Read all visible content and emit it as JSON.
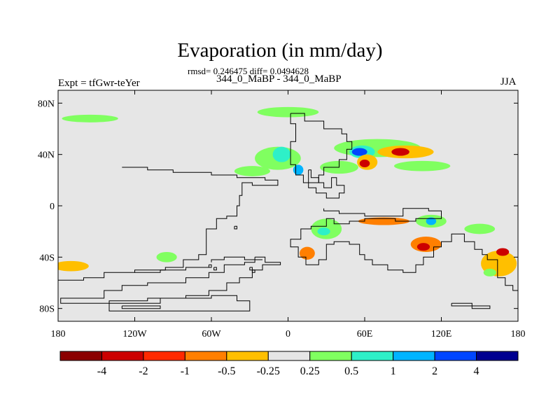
{
  "chart_data": {
    "type": "heatmap",
    "title": "Evaporation (in mm/day)",
    "stats": "rmsd= 0.246475 diff= 0.0494628",
    "experiment": "Expt = tfGwr-teYer",
    "case": "344_0_MaBP - 344_0_MaBP",
    "season": "JJA",
    "units": "mm/day",
    "x_range": [
      -180,
      180
    ],
    "y_range": [
      -90,
      90
    ],
    "x_ticks": [
      {
        "value": -180,
        "label": "180"
      },
      {
        "value": -120,
        "label": "120W"
      },
      {
        "value": -60,
        "label": "60W"
      },
      {
        "value": 0,
        "label": "0"
      },
      {
        "value": 60,
        "label": "60E"
      },
      {
        "value": 120,
        "label": "120E"
      },
      {
        "value": 180,
        "label": "180"
      }
    ],
    "y_ticks": [
      {
        "value": 80,
        "label": "80N"
      },
      {
        "value": 40,
        "label": "40N"
      },
      {
        "value": 0,
        "label": "0"
      },
      {
        "value": -40,
        "label": "40S"
      },
      {
        "value": -80,
        "label": "80S"
      }
    ],
    "colorbar": {
      "boundaries": [
        "-4",
        "-2",
        "-1",
        "-0.5",
        "-0.25",
        "0.25",
        "0.5",
        "1",
        "2",
        "4"
      ],
      "colors": [
        "#8b0000",
        "#cc0000",
        "#ff2a00",
        "#ff7f00",
        "#ffbf00",
        "#e6e6e6",
        "#80ff60",
        "#2ef0c8",
        "#00b4ff",
        "#0046ff",
        "#000090"
      ]
    },
    "anomaly_regions": [
      {
        "lon": -155,
        "lat": 68,
        "rx": 22,
        "ry": 3,
        "level": 6
      },
      {
        "lon": 0,
        "lat": 73,
        "rx": 24,
        "ry": 4,
        "level": 6
      },
      {
        "lon": -8,
        "lat": 37,
        "rx": 18,
        "ry": 9,
        "level": 6
      },
      {
        "lon": -5,
        "lat": 40,
        "rx": 7,
        "ry": 6,
        "level": 7
      },
      {
        "lon": 8,
        "lat": 28,
        "rx": 4,
        "ry": 4,
        "level": 8
      },
      {
        "lon": 70,
        "lat": 45,
        "rx": 34,
        "ry": 7,
        "level": 6
      },
      {
        "lon": 58,
        "lat": 42,
        "rx": 10,
        "ry": 5,
        "level": 7
      },
      {
        "lon": 56,
        "lat": 42,
        "rx": 6,
        "ry": 3,
        "level": 9
      },
      {
        "lon": 62,
        "lat": 34,
        "rx": 8,
        "ry": 6,
        "level": 4
      },
      {
        "lon": 60,
        "lat": 33,
        "rx": 4,
        "ry": 3,
        "level": 1
      },
      {
        "lon": 92,
        "lat": 42,
        "rx": 22,
        "ry": 5,
        "level": 4
      },
      {
        "lon": 88,
        "lat": 42,
        "rx": 7,
        "ry": 3,
        "level": 1
      },
      {
        "lon": 105,
        "lat": 31,
        "rx": 22,
        "ry": 4,
        "level": 6
      },
      {
        "lon": 40,
        "lat": 30,
        "rx": 15,
        "ry": 5,
        "level": 6
      },
      {
        "lon": -28,
        "lat": 27,
        "rx": 14,
        "ry": 4,
        "level": 6
      },
      {
        "lon": 30,
        "lat": -18,
        "rx": 12,
        "ry": 8,
        "level": 6
      },
      {
        "lon": 28,
        "lat": -20,
        "rx": 5,
        "ry": 3,
        "level": 7
      },
      {
        "lon": 75,
        "lat": -12,
        "rx": 20,
        "ry": 3,
        "level": 3
      },
      {
        "lon": 112,
        "lat": -12,
        "rx": 12,
        "ry": 5,
        "level": 6
      },
      {
        "lon": 112,
        "lat": -12,
        "rx": 4,
        "ry": 3,
        "level": 8
      },
      {
        "lon": 108,
        "lat": -30,
        "rx": 12,
        "ry": 6,
        "level": 3
      },
      {
        "lon": 106,
        "lat": -32,
        "rx": 5,
        "ry": 3,
        "level": 1
      },
      {
        "lon": 15,
        "lat": -37,
        "rx": 6,
        "ry": 5,
        "level": 3
      },
      {
        "lon": 165,
        "lat": -45,
        "rx": 14,
        "ry": 10,
        "level": 4
      },
      {
        "lon": 168,
        "lat": -36,
        "rx": 5,
        "ry": 3,
        "level": 1
      },
      {
        "lon": 158,
        "lat": -52,
        "rx": 5,
        "ry": 3,
        "level": 6
      },
      {
        "lon": -170,
        "lat": -47,
        "rx": 14,
        "ry": 4,
        "level": 4
      },
      {
        "lon": -95,
        "lat": -40,
        "rx": 8,
        "ry": 4,
        "level": 6
      },
      {
        "lon": 150,
        "lat": -18,
        "rx": 12,
        "ry": 4,
        "level": 6
      }
    ],
    "land_outlines": [
      [
        [
          2,
          72
        ],
        [
          13,
          72
        ],
        [
          13,
          66
        ],
        [
          28,
          66
        ],
        [
          28,
          60
        ],
        [
          42,
          60
        ],
        [
          42,
          56
        ],
        [
          46,
          56
        ],
        [
          46,
          50
        ],
        [
          50,
          50
        ],
        [
          50,
          44
        ],
        [
          46,
          44
        ],
        [
          46,
          36
        ],
        [
          40,
          36
        ],
        [
          40,
          30
        ],
        [
          28,
          30
        ],
        [
          28,
          24
        ],
        [
          24,
          24
        ],
        [
          24,
          18
        ],
        [
          12,
          18
        ],
        [
          12,
          24
        ],
        [
          6,
          24
        ],
        [
          6,
          32
        ],
        [
          2,
          32
        ],
        [
          2,
          50
        ],
        [
          6,
          50
        ],
        [
          6,
          64
        ],
        [
          2,
          64
        ],
        [
          2,
          72
        ]
      ],
      [
        [
          16,
          28
        ],
        [
          18,
          28
        ],
        [
          18,
          22
        ],
        [
          24,
          22
        ],
        [
          24,
          18
        ],
        [
          28,
          18
        ],
        [
          28,
          14
        ],
        [
          34,
          14
        ],
        [
          34,
          22
        ],
        [
          38,
          22
        ],
        [
          38,
          16
        ],
        [
          44,
          16
        ],
        [
          44,
          10
        ],
        [
          40,
          10
        ],
        [
          40,
          6
        ],
        [
          30,
          6
        ],
        [
          30,
          10
        ],
        [
          22,
          10
        ],
        [
          22,
          14
        ],
        [
          16,
          14
        ],
        [
          16,
          28
        ]
      ],
      [
        [
          -130,
          30
        ],
        [
          -110,
          30
        ],
        [
          -110,
          28
        ],
        [
          -90,
          28
        ],
        [
          -90,
          26
        ],
        [
          -60,
          26
        ],
        [
          -60,
          24
        ],
        [
          -40,
          24
        ],
        [
          -40,
          22
        ],
        [
          -18,
          22
        ],
        [
          -18,
          20
        ],
        [
          -8,
          20
        ],
        [
          -8,
          16
        ],
        [
          -28,
          16
        ],
        [
          -28,
          18
        ],
        [
          -36,
          18
        ],
        [
          -36,
          8
        ],
        [
          -38,
          8
        ],
        [
          -38,
          0
        ],
        [
          -40,
          0
        ],
        [
          -40,
          -8
        ],
        [
          -48,
          -8
        ],
        [
          -48,
          -10
        ],
        [
          -56,
          -10
        ],
        [
          -56,
          -18
        ],
        [
          -64,
          -18
        ],
        [
          -64,
          -38
        ],
        [
          -70,
          -38
        ],
        [
          -70,
          -42
        ],
        [
          -82,
          -42
        ],
        [
          -82,
          -48
        ],
        [
          -96,
          -48
        ],
        [
          -96,
          -50
        ],
        [
          -120,
          -50
        ],
        [
          -120,
          -52
        ],
        [
          -144,
          -52
        ],
        [
          -144,
          -56
        ],
        [
          -160,
          -56
        ],
        [
          -160,
          -58
        ],
        [
          -180,
          -58
        ]
      ],
      [
        [
          -26,
          -40
        ],
        [
          -26,
          -44
        ],
        [
          -34,
          -44
        ],
        [
          -34,
          -46
        ],
        [
          -50,
          -46
        ],
        [
          -50,
          -52
        ],
        [
          -62,
          -52
        ],
        [
          -62,
          -56
        ],
        [
          -80,
          -56
        ],
        [
          -80,
          -60
        ],
        [
          -110,
          -60
        ],
        [
          -110,
          -62
        ],
        [
          -130,
          -62
        ],
        [
          -130,
          -66
        ],
        [
          -144,
          -66
        ],
        [
          -144,
          -72
        ],
        [
          -178,
          -72
        ],
        [
          -178,
          -76
        ],
        [
          -140,
          -76
        ],
        [
          -140,
          -74
        ],
        [
          -110,
          -74
        ],
        [
          -110,
          -72
        ],
        [
          -80,
          -72
        ],
        [
          -80,
          -70
        ],
        [
          -62,
          -70
        ],
        [
          -62,
          -66
        ],
        [
          -48,
          -66
        ],
        [
          -48,
          -60
        ],
        [
          -38,
          -60
        ],
        [
          -38,
          -56
        ],
        [
          -28,
          -56
        ],
        [
          -28,
          -50
        ],
        [
          -20,
          -50
        ],
        [
          -20,
          -46
        ],
        [
          -6,
          -46
        ],
        [
          -6,
          -44
        ],
        [
          -18,
          -44
        ],
        [
          -18,
          -40
        ],
        [
          -26,
          -40
        ]
      ],
      [
        [
          -60,
          -46
        ],
        [
          -60,
          -48
        ],
        [
          -80,
          -48
        ],
        [
          -80,
          -50
        ],
        [
          -100,
          -50
        ],
        [
          -100,
          -52
        ],
        [
          -120,
          -52
        ]
      ],
      [
        [
          -60,
          -44
        ],
        [
          -60,
          -42
        ],
        [
          -50,
          -42
        ],
        [
          -50,
          -40
        ],
        [
          -34,
          -40
        ],
        [
          -34,
          -42
        ],
        [
          -20,
          -42
        ]
      ],
      [
        [
          -140,
          -80
        ],
        [
          -140,
          -82
        ],
        [
          -30,
          -82
        ],
        [
          -30,
          -74
        ],
        [
          -40,
          -74
        ],
        [
          -40,
          -70
        ],
        [
          -60,
          -70
        ],
        [
          -60,
          -72
        ],
        [
          -100,
          -72
        ],
        [
          -100,
          -76
        ],
        [
          -140,
          -76
        ],
        [
          -140,
          -80
        ]
      ],
      [
        [
          28,
          -2
        ],
        [
          28,
          -4
        ],
        [
          40,
          -4
        ],
        [
          40,
          -6
        ],
        [
          60,
          -6
        ],
        [
          60,
          -8
        ],
        [
          90,
          -8
        ],
        [
          90,
          -2
        ],
        [
          110,
          -2
        ],
        [
          110,
          -4
        ],
        [
          120,
          -4
        ],
        [
          120,
          -10
        ],
        [
          100,
          -10
        ],
        [
          100,
          -12
        ],
        [
          84,
          -12
        ],
        [
          84,
          -10
        ],
        [
          60,
          -10
        ],
        [
          60,
          -12
        ],
        [
          48,
          -12
        ],
        [
          48,
          -14
        ],
        [
          36,
          -14
        ],
        [
          36,
          -10
        ],
        [
          30,
          -10
        ],
        [
          30,
          -16
        ],
        [
          18,
          -16
        ],
        [
          18,
          -18
        ],
        [
          10,
          -18
        ],
        [
          10,
          -26
        ],
        [
          2,
          -26
        ],
        [
          2,
          -32
        ],
        [
          8,
          -32
        ],
        [
          8,
          -40
        ],
        [
          14,
          -40
        ],
        [
          14,
          -46
        ],
        [
          24,
          -46
        ],
        [
          24,
          -42
        ],
        [
          30,
          -42
        ],
        [
          30,
          -30
        ],
        [
          36,
          -30
        ],
        [
          36,
          -28
        ],
        [
          48,
          -28
        ],
        [
          48,
          -30
        ],
        [
          56,
          -30
        ],
        [
          56,
          -38
        ],
        [
          60,
          -38
        ],
        [
          60,
          -42
        ],
        [
          66,
          -42
        ],
        [
          66,
          -46
        ],
        [
          78,
          -46
        ],
        [
          78,
          -50
        ],
        [
          90,
          -50
        ],
        [
          90,
          -52
        ],
        [
          100,
          -52
        ],
        [
          100,
          -46
        ],
        [
          106,
          -46
        ],
        [
          106,
          -40
        ],
        [
          114,
          -40
        ],
        [
          114,
          -32
        ],
        [
          120,
          -32
        ],
        [
          120,
          -28
        ],
        [
          128,
          -28
        ],
        [
          128,
          -22
        ],
        [
          138,
          -22
        ],
        [
          138,
          -28
        ],
        [
          146,
          -28
        ],
        [
          146,
          -34
        ],
        [
          152,
          -34
        ],
        [
          152,
          -38
        ],
        [
          156,
          -38
        ],
        [
          156,
          -42
        ],
        [
          164,
          -42
        ],
        [
          164,
          -56
        ],
        [
          170,
          -56
        ],
        [
          170,
          -62
        ],
        [
          176,
          -62
        ],
        [
          176,
          -66
        ],
        [
          180,
          -66
        ]
      ],
      [
        [
          -42,
          -16
        ],
        [
          -42,
          -18
        ],
        [
          -40,
          -18
        ],
        [
          -40,
          -16
        ],
        [
          -42,
          -16
        ]
      ],
      [
        [
          -62,
          -46
        ],
        [
          -62,
          -48
        ],
        [
          -60,
          -48
        ],
        [
          -60,
          -46
        ],
        [
          -62,
          -46
        ]
      ],
      [
        [
          -58,
          -48
        ],
        [
          -58,
          -50
        ],
        [
          -56,
          -50
        ],
        [
          -56,
          -48
        ],
        [
          -58,
          -48
        ]
      ],
      [
        [
          -30,
          -48
        ],
        [
          -30,
          -50
        ],
        [
          -28,
          -50
        ],
        [
          -28,
          -48
        ],
        [
          -30,
          -48
        ]
      ],
      [
        [
          -28,
          -50
        ],
        [
          -28,
          -52
        ],
        [
          -26,
          -52
        ],
        [
          -26,
          -50
        ],
        [
          -28,
          -50
        ]
      ],
      [
        [
          128,
          -76
        ],
        [
          128,
          -78
        ],
        [
          144,
          -78
        ],
        [
          144,
          -80
        ],
        [
          158,
          -80
        ],
        [
          158,
          -78
        ],
        [
          144,
          -78
        ],
        [
          144,
          -76
        ],
        [
          128,
          -76
        ]
      ],
      [
        [
          -130,
          -78
        ],
        [
          -130,
          -80
        ],
        [
          -100,
          -80
        ],
        [
          -100,
          -78
        ],
        [
          -130,
          -78
        ]
      ]
    ]
  }
}
